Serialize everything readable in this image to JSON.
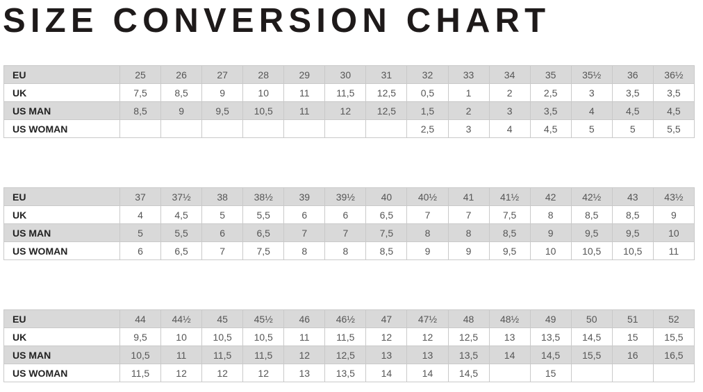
{
  "title": "SIZE CONVERSION CHART",
  "colors": {
    "shaded_row": "#d9d9d9",
    "border": "#c9c9c9",
    "title": "#1e1a1a"
  },
  "tables": [
    {
      "rows": [
        {
          "label": "EU",
          "values": [
            "25",
            "26",
            "27",
            "28",
            "29",
            "30",
            "31",
            "32",
            "33",
            "34",
            "35",
            "35½",
            "36",
            "36½"
          ]
        },
        {
          "label": "UK",
          "values": [
            "7,5",
            "8,5",
            "9",
            "10",
            "11",
            "11,5",
            "12,5",
            "0,5",
            "1",
            "2",
            "2,5",
            "3",
            "3,5",
            "3,5"
          ]
        },
        {
          "label": "US MAN",
          "values": [
            "8,5",
            "9",
            "9,5",
            "10,5",
            "11",
            "12",
            "12,5",
            "1,5",
            "2",
            "3",
            "3,5",
            "4",
            "4,5",
            "4,5"
          ]
        },
        {
          "label": "US WOMAN",
          "values": [
            "",
            "",
            "",
            "",
            "",
            "",
            "",
            "2,5",
            "3",
            "4",
            "4,5",
            "5",
            "5",
            "5,5"
          ]
        }
      ]
    },
    {
      "rows": [
        {
          "label": "EU",
          "values": [
            "37",
            "37½",
            "38",
            "38½",
            "39",
            "39½",
            "40",
            "40½",
            "41",
            "41½",
            "42",
            "42½",
            "43",
            "43½"
          ]
        },
        {
          "label": "UK",
          "values": [
            "4",
            "4,5",
            "5",
            "5,5",
            "6",
            "6",
            "6,5",
            "7",
            "7",
            "7,5",
            "8",
            "8,5",
            "8,5",
            "9"
          ]
        },
        {
          "label": "US MAN",
          "values": [
            "5",
            "5,5",
            "6",
            "6,5",
            "7",
            "7",
            "7,5",
            "8",
            "8",
            "8,5",
            "9",
            "9,5",
            "9,5",
            "10"
          ]
        },
        {
          "label": "US WOMAN",
          "values": [
            "6",
            "6,5",
            "7",
            "7,5",
            "8",
            "8",
            "8,5",
            "9",
            "9",
            "9,5",
            "10",
            "10,5",
            "10,5",
            "11"
          ]
        }
      ]
    },
    {
      "rows": [
        {
          "label": "EU",
          "values": [
            "44",
            "44½",
            "45",
            "45½",
            "46",
            "46½",
            "47",
            "47½",
            "48",
            "48½",
            "49",
            "50",
            "51",
            "52"
          ]
        },
        {
          "label": "UK",
          "values": [
            "9,5",
            "10",
            "10,5",
            "10,5",
            "11",
            "11,5",
            "12",
            "12",
            "12,5",
            "13",
            "13,5",
            "14,5",
            "15",
            "15,5"
          ]
        },
        {
          "label": "US MAN",
          "values": [
            "10,5",
            "11",
            "11,5",
            "11,5",
            "12",
            "12,5",
            "13",
            "13",
            "13,5",
            "14",
            "14,5",
            "15,5",
            "16",
            "16,5"
          ]
        },
        {
          "label": "US WOMAN",
          "values": [
            "11,5",
            "12",
            "12",
            "12",
            "13",
            "13,5",
            "14",
            "14",
            "14,5",
            "",
            "15",
            "",
            "",
            ""
          ]
        }
      ]
    }
  ]
}
